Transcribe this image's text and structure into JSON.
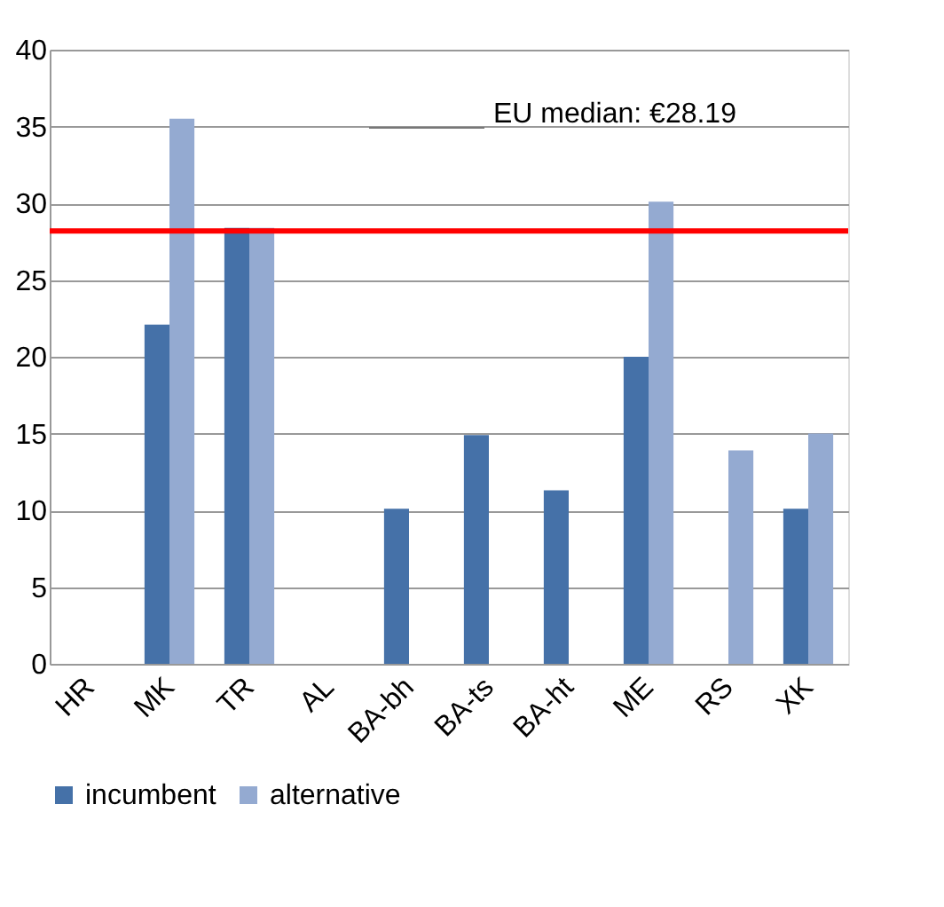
{
  "chart_data": {
    "type": "bar",
    "categories": [
      "HR",
      "MK",
      "TR",
      "AL",
      "BA-bh",
      "BA-ts",
      "BA-ht",
      "ME",
      "RS",
      "XK"
    ],
    "series": [
      {
        "name": "incumbent",
        "color": "#4571a8",
        "values": [
          null,
          22.1,
          28.4,
          null,
          10.1,
          14.9,
          11.3,
          20,
          null,
          10.1
        ]
      },
      {
        "name": "alternative",
        "color": "#94aad1",
        "values": [
          null,
          35.5,
          28.4,
          null,
          null,
          null,
          null,
          30.1,
          13.9,
          15
        ]
      }
    ],
    "ylim": [
      0,
      40
    ],
    "yticks": [
      0,
      5,
      10,
      15,
      20,
      25,
      30,
      35,
      40
    ],
    "grid": "y",
    "legend": "bottom",
    "ref_lines": [
      {
        "axis": "y",
        "value": 28.19,
        "color": "#ff0000"
      }
    ],
    "annotations": [
      "EU median: €28.19"
    ]
  }
}
